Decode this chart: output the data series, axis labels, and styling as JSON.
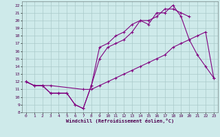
{
  "bg_color": "#ceeaea",
  "line_color": "#800080",
  "grid_color": "#aacaca",
  "xlim": [
    -0.5,
    23.5
  ],
  "ylim": [
    8,
    22.5
  ],
  "xticks": [
    0,
    1,
    2,
    3,
    4,
    5,
    6,
    7,
    8,
    9,
    10,
    11,
    12,
    13,
    14,
    15,
    16,
    17,
    18,
    19,
    20,
    21,
    22,
    23
  ],
  "yticks": [
    8,
    9,
    10,
    11,
    12,
    13,
    14,
    15,
    16,
    17,
    18,
    19,
    20,
    21,
    22
  ],
  "xlabel": "Windchill (Refroidissement éolien,°C)",
  "line1_x": [
    0,
    1,
    2,
    3,
    4,
    5,
    6,
    7,
    8,
    9,
    10,
    11,
    12,
    13,
    14,
    15,
    16,
    17,
    18,
    19,
    20
  ],
  "line1_y": [
    12,
    11.5,
    11.5,
    10.5,
    10.5,
    10.5,
    9.0,
    8.5,
    11.5,
    16.5,
    17.0,
    18.0,
    18.5,
    19.5,
    20.0,
    20.0,
    20.5,
    21.5,
    21.5,
    21.0,
    20.5
  ],
  "line2_x": [
    0,
    1,
    2,
    3,
    7,
    8,
    9,
    10,
    11,
    12,
    13,
    14,
    15,
    16,
    17,
    18,
    19,
    20,
    21,
    22,
    23
  ],
  "line2_y": [
    12,
    11.5,
    11.5,
    11.5,
    11.0,
    11.0,
    11.5,
    12.0,
    12.5,
    13.0,
    13.5,
    14.0,
    14.5,
    15.0,
    15.5,
    16.5,
    17.0,
    17.5,
    18.0,
    18.5,
    12.5
  ],
  "line3_x": [
    0,
    1,
    2,
    3,
    4,
    5,
    6,
    7,
    8,
    9,
    10,
    11,
    12,
    13,
    14,
    15,
    16,
    17,
    18,
    19,
    20,
    21,
    22,
    23
  ],
  "line3_y": [
    12,
    11.5,
    11.5,
    10.5,
    10.5,
    10.5,
    9.0,
    8.5,
    11.5,
    15.0,
    16.5,
    17.0,
    17.5,
    18.5,
    20.0,
    19.5,
    21.0,
    21.0,
    22.0,
    20.5,
    17.5,
    15.5,
    14.0,
    12.5
  ]
}
